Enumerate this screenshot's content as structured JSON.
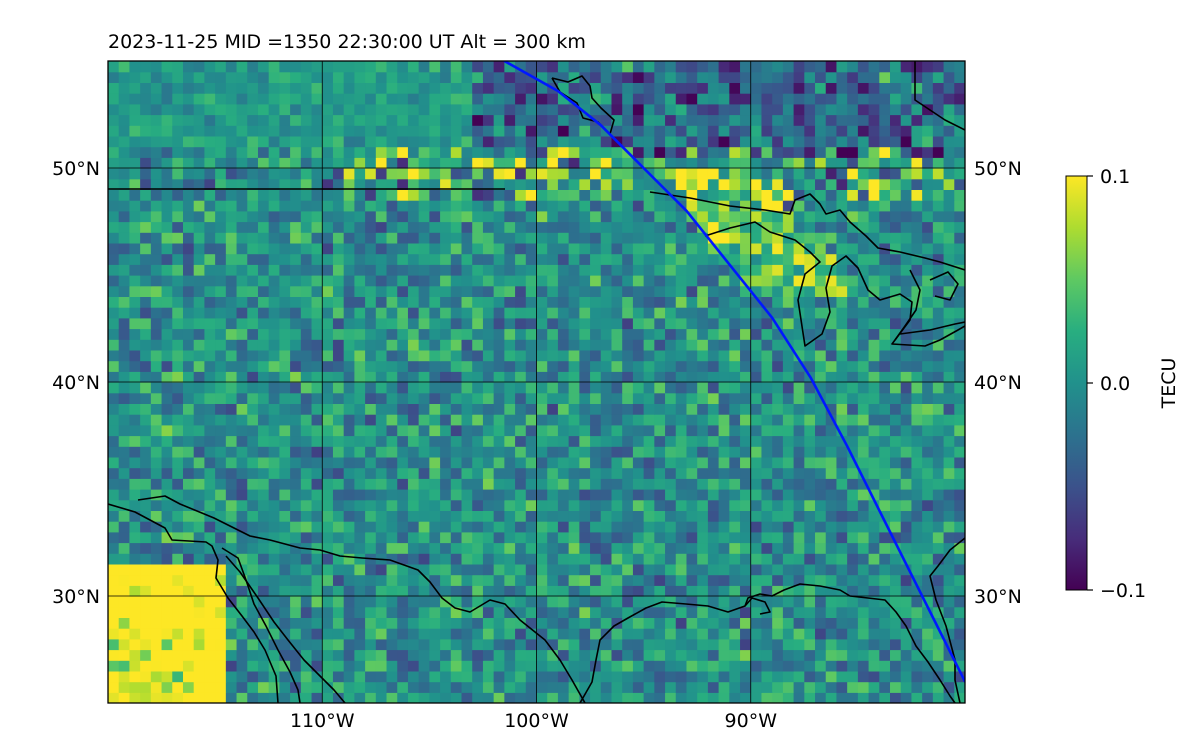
{
  "title": "2023-11-25  MID =1350    22:30:00  UT  Alt = 300 km",
  "map": {
    "extent": {
      "lon": [
        -120,
        -80
      ],
      "lat": [
        25,
        55
      ]
    },
    "gridlines": {
      "lon": [
        -110,
        -100,
        -90
      ],
      "lat": [
        30,
        40,
        50
      ]
    },
    "lat_labels": [
      "50°N",
      "40°N",
      "30°N"
    ],
    "lon_labels": [
      "110°W",
      "100°W",
      "90°W"
    ],
    "cell_deg": 0.5,
    "feature_colors": {
      "coastline": "#000000",
      "track": "#0018ff"
    }
  },
  "track": {
    "name": "",
    "points": [
      [
        -101.5,
        55
      ],
      [
        -99,
        53.6
      ],
      [
        -97,
        52
      ],
      [
        -95,
        50
      ],
      [
        -93,
        48
      ],
      [
        -91,
        45.5
      ],
      [
        -89,
        43
      ],
      [
        -87.2,
        40.2
      ],
      [
        -85.5,
        37
      ],
      [
        -84,
        34
      ],
      [
        -82.5,
        31
      ],
      [
        -81,
        28
      ],
      [
        -80,
        26
      ]
    ]
  },
  "colorbar": {
    "label": "TECU",
    "range": [
      -0.1,
      0.1
    ],
    "ticks": [
      "0.1",
      "0.0",
      "−0.1"
    ],
    "colormap": "viridis"
  }
}
